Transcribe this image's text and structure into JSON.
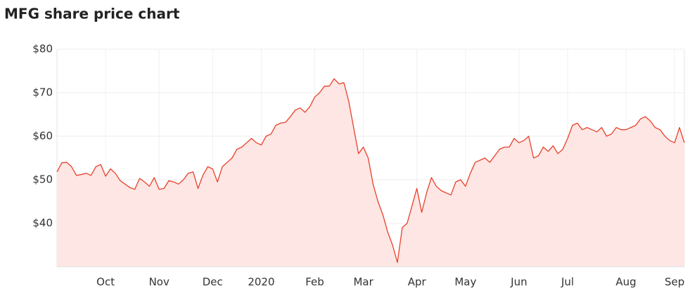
{
  "chart_data": {
    "type": "line",
    "title": "MFG share price chart",
    "categories": [
      null,
      null,
      null,
      null,
      null,
      null,
      null,
      null,
      null,
      null,
      "Oct",
      null,
      null,
      null,
      null,
      null,
      null,
      null,
      null,
      null,
      null,
      "Nov",
      null,
      null,
      null,
      null,
      null,
      null,
      null,
      null,
      null,
      null,
      "Dec",
      null,
      null,
      null,
      null,
      null,
      null,
      null,
      null,
      null,
      "2020",
      null,
      null,
      null,
      null,
      null,
      null,
      null,
      null,
      null,
      null,
      "Feb",
      null,
      null,
      null,
      null,
      null,
      null,
      null,
      null,
      null,
      "Mar",
      null,
      null,
      null,
      null,
      null,
      null,
      null,
      null,
      null,
      null,
      "Apr",
      null,
      null,
      null,
      null,
      null,
      null,
      null,
      null,
      null,
      "May",
      null,
      null,
      null,
      null,
      null,
      null,
      null,
      null,
      null,
      null,
      "Jun",
      null,
      null,
      null,
      null,
      null,
      null,
      null,
      null,
      null,
      "Jul",
      null,
      null,
      null,
      null,
      null,
      null,
      null,
      null,
      null,
      null,
      null,
      "Aug",
      null,
      null,
      null,
      null,
      null,
      null,
      null,
      null,
      null,
      "Sep",
      null,
      null
    ],
    "series": [
      {
        "color": "#e8412c",
        "fill": "#fde6e3",
        "values": [
          51.8,
          53.9,
          54,
          53,
          51,
          51.2,
          51.5,
          51,
          53,
          53.5,
          50.8,
          52.5,
          51.5,
          49.8,
          49,
          48.2,
          47.8,
          50.3,
          49.5,
          48.5,
          50.5,
          47.8,
          48,
          49.8,
          49.5,
          49,
          50,
          51.5,
          51.8,
          48,
          51,
          53,
          52.5,
          49.5,
          53,
          54,
          55,
          57,
          57.5,
          58.5,
          59.5,
          58.5,
          58,
          60,
          60.5,
          62.5,
          63,
          63.2,
          64.5,
          66,
          66.5,
          65.5,
          66.8,
          69,
          70,
          71.5,
          71.5,
          73.2,
          72,
          72.3,
          68,
          62,
          56,
          57.5,
          55,
          49,
          45,
          42,
          38,
          35,
          31,
          39,
          40,
          44,
          48,
          42.5,
          47,
          50.5,
          48.5,
          47.5,
          47,
          46.5,
          49.5,
          50,
          48.5,
          51.5,
          54,
          54.5,
          55,
          54,
          55.5,
          57,
          57.5,
          57.5,
          59.5,
          58.5,
          59,
          60,
          55,
          55.5,
          57.5,
          56.5,
          57.8,
          56,
          57,
          59.5,
          62.5,
          63,
          61.5,
          62,
          61.5,
          61,
          62,
          60,
          60.5,
          62,
          61.5,
          61.5,
          62,
          62.5,
          64,
          64.5,
          63.5,
          62,
          61.5,
          60,
          59,
          58.5,
          62,
          58.5
        ]
      }
    ],
    "ylim": [
      30,
      80
    ],
    "yticks": [
      {
        "value": 40,
        "label": "$40"
      },
      {
        "value": 50,
        "label": "$50"
      },
      {
        "value": 60,
        "label": "$60"
      },
      {
        "value": 70,
        "label": "$70"
      },
      {
        "value": 80,
        "label": "$80"
      }
    ],
    "grid": true
  }
}
